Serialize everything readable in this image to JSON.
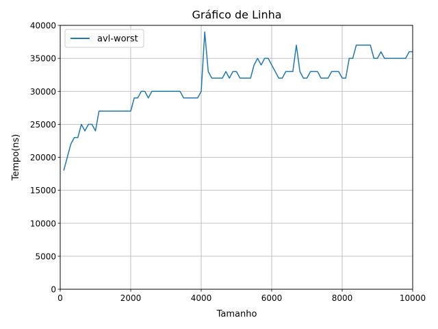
{
  "chart_data": {
    "type": "line",
    "title": "Gráfico de Linha",
    "xlabel": "Tamanho",
    "ylabel": "Tempo(ns)",
    "xlim": [
      0,
      10000
    ],
    "ylim": [
      0,
      40000
    ],
    "xticks": [
      0,
      2000,
      4000,
      6000,
      8000,
      10000
    ],
    "yticks": [
      0,
      5000,
      10000,
      15000,
      20000,
      25000,
      30000,
      35000,
      40000
    ],
    "grid": true,
    "legend_position": "top-left",
    "series": [
      {
        "name": "avl-worst",
        "color": "#1f77b4",
        "x": [
          100,
          200,
          300,
          400,
          500,
          600,
          700,
          800,
          900,
          1000,
          1100,
          1200,
          1300,
          1400,
          1500,
          1600,
          1700,
          1800,
          1900,
          2000,
          2100,
          2200,
          2300,
          2400,
          2500,
          2600,
          2700,
          2800,
          2900,
          3000,
          3100,
          3200,
          3300,
          3400,
          3500,
          3600,
          3700,
          3800,
          3900,
          4000,
          4100,
          4200,
          4300,
          4400,
          4500,
          4600,
          4700,
          4800,
          4900,
          5000,
          5100,
          5200,
          5300,
          5400,
          5500,
          5600,
          5700,
          5800,
          5900,
          6000,
          6100,
          6200,
          6300,
          6400,
          6500,
          6600,
          6700,
          6800,
          6900,
          7000,
          7100,
          7200,
          7300,
          7400,
          7500,
          7600,
          7700,
          7800,
          7900,
          8000,
          8100,
          8200,
          8300,
          8400,
          8500,
          8600,
          8700,
          8800,
          8900,
          9000,
          9100,
          9200,
          9300,
          9400,
          9500,
          9600,
          9700,
          9800,
          9900,
          10000
        ],
        "y": [
          18000,
          20000,
          22000,
          23000,
          23000,
          25000,
          24000,
          25000,
          25000,
          24000,
          27000,
          27000,
          27000,
          27000,
          27000,
          27000,
          27000,
          27000,
          27000,
          27000,
          29000,
          29000,
          30000,
          30000,
          29000,
          30000,
          30000,
          30000,
          30000,
          30000,
          30000,
          30000,
          30000,
          30000,
          29000,
          29000,
          29000,
          29000,
          29000,
          30000,
          39000,
          33000,
          32000,
          32000,
          32000,
          32000,
          33000,
          32000,
          33000,
          33000,
          32000,
          32000,
          32000,
          32000,
          34000,
          35000,
          34000,
          35000,
          35000,
          34000,
          33000,
          32000,
          32000,
          33000,
          33000,
          33000,
          37000,
          33000,
          32000,
          32000,
          33000,
          33000,
          33000,
          32000,
          32000,
          32000,
          33000,
          33000,
          33000,
          32000,
          32000,
          35000,
          35000,
          37000,
          37000,
          37000,
          37000,
          37000,
          35000,
          35000,
          36000,
          35000,
          35000,
          35000,
          35000,
          35000,
          35000,
          35000,
          36000,
          36000
        ]
      }
    ]
  }
}
